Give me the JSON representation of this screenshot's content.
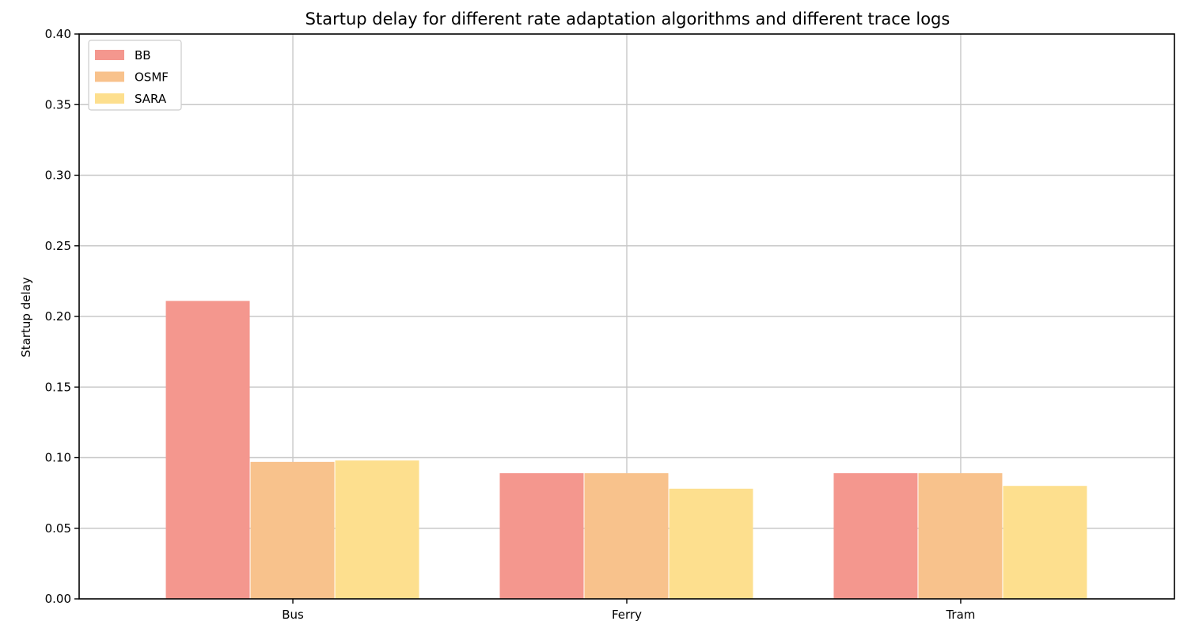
{
  "chart_data": {
    "type": "bar",
    "title": "Startup delay for different rate adaptation algorithms and different trace logs",
    "xlabel": "",
    "ylabel": "Startup delay",
    "categories": [
      "Bus",
      "Ferry",
      "Tram"
    ],
    "series": [
      {
        "name": "BB",
        "color": "#f4978e",
        "values": [
          0.211,
          0.089,
          0.089
        ]
      },
      {
        "name": "OSMF",
        "color": "#f8c28c",
        "values": [
          0.097,
          0.089,
          0.089
        ]
      },
      {
        "name": "SARA",
        "color": "#fddf8e",
        "values": [
          0.098,
          0.078,
          0.08
        ]
      }
    ],
    "ylim": [
      0,
      0.4
    ],
    "yticks": [
      "0.00",
      "0.05",
      "0.10",
      "0.15",
      "0.20",
      "0.25",
      "0.30",
      "0.35",
      "0.40"
    ],
    "grid": true,
    "legend_position": "top-left"
  }
}
